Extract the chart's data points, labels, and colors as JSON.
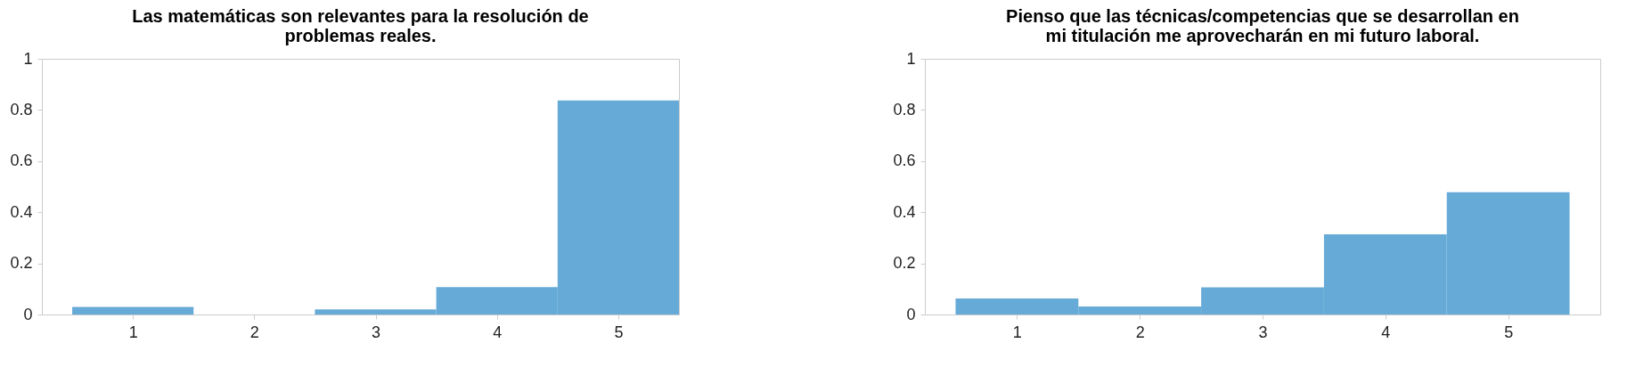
{
  "chart_data": [
    {
      "type": "histogram",
      "title": "Las matemáticas son relevantes para la resolución de problemas reales.",
      "bins": [
        0.5,
        1.5,
        2.5,
        3.5,
        4.5,
        5.5
      ],
      "values": [
        0.03,
        0,
        0.02,
        0.107,
        0.837
      ],
      "color": "#66aad7",
      "xlim": [
        0.25,
        5.5
      ],
      "xticks": [
        1,
        2,
        3,
        4,
        5
      ],
      "ylim": [
        0,
        1
      ],
      "yticks": [
        0,
        0.2,
        0.4,
        0.6,
        0.8,
        1
      ],
      "grid": false
    },
    {
      "type": "histogram",
      "title": "Pienso que las técnicas/competencias que se desarrollan en mi titulación me aprovecharán en mi futuro laboral.",
      "bins": [
        0.5,
        1.5,
        2.5,
        3.5,
        4.5,
        5.5
      ],
      "values": [
        0.063,
        0.031,
        0.106,
        0.314,
        0.478
      ],
      "color": "#66aad7",
      "xlim": [
        0.25,
        5.75
      ],
      "xticks": [
        1,
        2,
        3,
        4,
        5
      ],
      "ylim": [
        0,
        1
      ],
      "yticks": [
        0,
        0.2,
        0.4,
        0.6,
        0.8,
        1
      ],
      "grid": false
    }
  ]
}
